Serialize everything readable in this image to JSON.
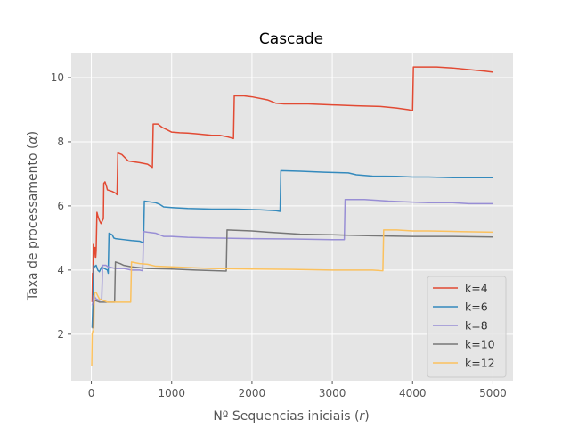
{
  "chart_data": {
    "type": "line",
    "title": "Cascade",
    "xlabel_main": "Nº Sequencias iniciais (",
    "xlabel_var": "r",
    "xlabel_end": ")",
    "ylabel_main": "Taxa de processamento (",
    "ylabel_var": "α",
    "ylabel_end": ")",
    "xlim": [
      -250,
      5250
    ],
    "ylim": [
      0.55,
      10.75
    ],
    "xticks": [
      0,
      1000,
      2000,
      3000,
      4000,
      5000
    ],
    "yticks": [
      2,
      4,
      6,
      8,
      10
    ],
    "grid": true,
    "legend_position": "lower-right",
    "series": [
      {
        "name": "k=4",
        "color": "#E24A33",
        "points": [
          [
            10,
            3.0
          ],
          [
            15,
            3.9
          ],
          [
            20,
            3.5
          ],
          [
            25,
            4.8
          ],
          [
            35,
            4.4
          ],
          [
            40,
            4.7
          ],
          [
            50,
            4.7
          ],
          [
            55,
            4.4
          ],
          [
            60,
            4.6
          ],
          [
            65,
            5.2
          ],
          [
            70,
            5.8
          ],
          [
            80,
            5.7
          ],
          [
            100,
            5.55
          ],
          [
            120,
            5.45
          ],
          [
            150,
            5.6
          ],
          [
            155,
            6.7
          ],
          [
            170,
            6.75
          ],
          [
            190,
            6.6
          ],
          [
            200,
            6.5
          ],
          [
            260,
            6.45
          ],
          [
            300,
            6.4
          ],
          [
            320,
            6.35
          ],
          [
            330,
            7.65
          ],
          [
            380,
            7.6
          ],
          [
            420,
            7.5
          ],
          [
            460,
            7.4
          ],
          [
            600,
            7.35
          ],
          [
            700,
            7.3
          ],
          [
            760,
            7.2
          ],
          [
            770,
            8.55
          ],
          [
            830,
            8.55
          ],
          [
            880,
            8.45
          ],
          [
            960,
            8.35
          ],
          [
            1000,
            8.3
          ],
          [
            1100,
            8.28
          ],
          [
            1200,
            8.27
          ],
          [
            1300,
            8.25
          ],
          [
            1500,
            8.2
          ],
          [
            1600,
            8.2
          ],
          [
            1700,
            8.15
          ],
          [
            1770,
            8.1
          ],
          [
            1780,
            9.43
          ],
          [
            1900,
            9.43
          ],
          [
            2000,
            9.4
          ],
          [
            2200,
            9.3
          ],
          [
            2300,
            9.2
          ],
          [
            2400,
            9.18
          ],
          [
            2700,
            9.18
          ],
          [
            3000,
            9.15
          ],
          [
            3300,
            9.12
          ],
          [
            3600,
            9.1
          ],
          [
            3800,
            9.05
          ],
          [
            3950,
            9.0
          ],
          [
            4000,
            8.97
          ],
          [
            4010,
            10.33
          ],
          [
            4300,
            10.33
          ],
          [
            4500,
            10.3
          ],
          [
            4700,
            10.25
          ],
          [
            4900,
            10.2
          ],
          [
            5000,
            10.17
          ]
        ]
      },
      {
        "name": "k=6",
        "color": "#348ABD",
        "points": [
          [
            10,
            2.2
          ],
          [
            20,
            3.0
          ],
          [
            25,
            3.6
          ],
          [
            30,
            4.15
          ],
          [
            40,
            4.1
          ],
          [
            60,
            4.15
          ],
          [
            80,
            4.0
          ],
          [
            100,
            3.95
          ],
          [
            130,
            4.1
          ],
          [
            160,
            4.05
          ],
          [
            200,
            4.0
          ],
          [
            210,
            3.9
          ],
          [
            220,
            5.15
          ],
          [
            260,
            5.1
          ],
          [
            280,
            5.0
          ],
          [
            300,
            4.98
          ],
          [
            400,
            4.95
          ],
          [
            500,
            4.92
          ],
          [
            600,
            4.9
          ],
          [
            650,
            4.85
          ],
          [
            660,
            6.15
          ],
          [
            800,
            6.1
          ],
          [
            850,
            6.05
          ],
          [
            900,
            5.97
          ],
          [
            1000,
            5.95
          ],
          [
            1200,
            5.92
          ],
          [
            1500,
            5.9
          ],
          [
            1800,
            5.9
          ],
          [
            2100,
            5.88
          ],
          [
            2300,
            5.85
          ],
          [
            2350,
            5.83
          ],
          [
            2360,
            7.1
          ],
          [
            2600,
            7.08
          ],
          [
            2900,
            7.05
          ],
          [
            3200,
            7.03
          ],
          [
            3300,
            6.97
          ],
          [
            3500,
            6.93
          ],
          [
            3800,
            6.92
          ],
          [
            4000,
            6.9
          ],
          [
            4200,
            6.9
          ],
          [
            4500,
            6.88
          ],
          [
            5000,
            6.88
          ]
        ]
      },
      {
        "name": "k=8",
        "color": "#988ED5",
        "points": [
          [
            10,
            2.9
          ],
          [
            20,
            3.0
          ],
          [
            30,
            3.2
          ],
          [
            60,
            3.1
          ],
          [
            100,
            3.05
          ],
          [
            130,
            3.1
          ],
          [
            140,
            4.15
          ],
          [
            180,
            4.15
          ],
          [
            210,
            4.1
          ],
          [
            300,
            4.05
          ],
          [
            400,
            4.05
          ],
          [
            500,
            4.0
          ],
          [
            600,
            4.0
          ],
          [
            640,
            3.98
          ],
          [
            650,
            5.2
          ],
          [
            700,
            5.18
          ],
          [
            800,
            5.15
          ],
          [
            850,
            5.1
          ],
          [
            900,
            5.05
          ],
          [
            1000,
            5.05
          ],
          [
            1200,
            5.02
          ],
          [
            1500,
            5.0
          ],
          [
            2000,
            4.98
          ],
          [
            2500,
            4.97
          ],
          [
            3000,
            4.95
          ],
          [
            3150,
            4.95
          ],
          [
            3160,
            6.2
          ],
          [
            3400,
            6.2
          ],
          [
            3700,
            6.15
          ],
          [
            4000,
            6.12
          ],
          [
            4200,
            6.1
          ],
          [
            4500,
            6.1
          ],
          [
            4700,
            6.07
          ],
          [
            5000,
            6.07
          ]
        ]
      },
      {
        "name": "k=10",
        "color": "#777777",
        "points": [
          [
            10,
            2.2
          ],
          [
            20,
            2.2
          ],
          [
            30,
            3.0
          ],
          [
            50,
            3.05
          ],
          [
            100,
            3.0
          ],
          [
            200,
            3.0
          ],
          [
            290,
            3.0
          ],
          [
            300,
            4.25
          ],
          [
            360,
            4.2
          ],
          [
            400,
            4.15
          ],
          [
            500,
            4.1
          ],
          [
            700,
            4.05
          ],
          [
            1000,
            4.03
          ],
          [
            1300,
            4.0
          ],
          [
            1680,
            3.97
          ],
          [
            1690,
            5.25
          ],
          [
            2000,
            5.22
          ],
          [
            2200,
            5.18
          ],
          [
            2400,
            5.15
          ],
          [
            2600,
            5.12
          ],
          [
            3000,
            5.1
          ],
          [
            3500,
            5.07
          ],
          [
            4000,
            5.05
          ],
          [
            4500,
            5.05
          ],
          [
            5000,
            5.03
          ]
        ]
      },
      {
        "name": "k=12",
        "color": "#FBC15E",
        "points": [
          [
            5,
            1.0
          ],
          [
            10,
            2.0
          ],
          [
            20,
            2.1
          ],
          [
            30,
            2.1
          ],
          [
            40,
            3.3
          ],
          [
            60,
            3.3
          ],
          [
            80,
            3.2
          ],
          [
            100,
            3.1
          ],
          [
            200,
            3.0
          ],
          [
            400,
            3.0
          ],
          [
            490,
            3.0
          ],
          [
            500,
            4.25
          ],
          [
            600,
            4.2
          ],
          [
            700,
            4.18
          ],
          [
            800,
            4.12
          ],
          [
            1000,
            4.1
          ],
          [
            1500,
            4.05
          ],
          [
            2000,
            4.03
          ],
          [
            2500,
            4.02
          ],
          [
            3000,
            4.0
          ],
          [
            3500,
            4.0
          ],
          [
            3630,
            3.98
          ],
          [
            3640,
            5.25
          ],
          [
            3800,
            5.25
          ],
          [
            4000,
            5.22
          ],
          [
            4200,
            5.22
          ],
          [
            4600,
            5.2
          ],
          [
            5000,
            5.18
          ]
        ]
      }
    ]
  }
}
